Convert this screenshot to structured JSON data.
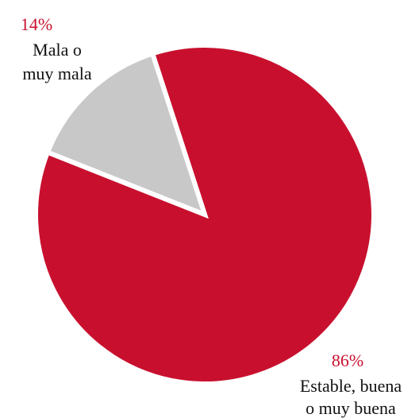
{
  "chart_data": {
    "type": "pie",
    "slices": [
      {
        "value": 86,
        "percent_label": "86%",
        "label_lines": [
          "Estable, buena",
          "o muy buena"
        ],
        "color": "#c8102e"
      },
      {
        "value": 14,
        "percent_label": "14%",
        "label_lines": [
          "Mala o",
          "muy mala"
        ],
        "color": "#c8c8c8"
      }
    ],
    "separator_color": "#ffffff",
    "exploded": false
  }
}
